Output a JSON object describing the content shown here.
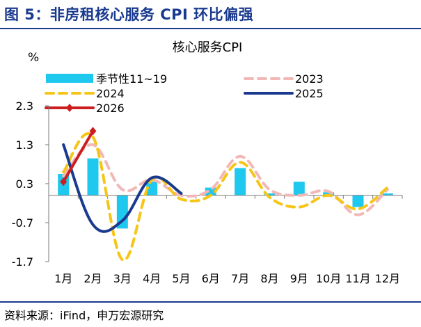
{
  "figure_title": "图 5：非房租核心服务 CPI 环比偏强",
  "source": "资料来源：iFind，申万宏源研究",
  "chart_data": {
    "type": "bar+line",
    "title": "核心服务CPI",
    "ylabel": "%",
    "ylim": [
      -1.7,
      2.3
    ],
    "yticks": [
      2.3,
      1.3,
      0.3,
      -0.7,
      -1.7
    ],
    "ytick_labels": [
      "2.3",
      "1.3",
      "0.3",
      "-0.7",
      "-1.7"
    ],
    "categories": [
      "1月",
      "2月",
      "3月",
      "4月",
      "5月",
      "6月",
      "7月",
      "8月",
      "9月",
      "10月",
      "11月",
      "12月"
    ],
    "bar": {
      "name": "季节性11~19",
      "color": "#1ec8ee",
      "values": [
        0.55,
        0.95,
        -0.85,
        0.35,
        null,
        0.2,
        0.7,
        0.05,
        0.35,
        0.08,
        -0.3,
        0.05
      ]
    },
    "lines": [
      {
        "name": "2023",
        "color": "#f2b8b8",
        "dash": "dashed",
        "values": [
          0.5,
          1.3,
          0.15,
          0.4,
          0.0,
          0.15,
          1.0,
          0.15,
          0.0,
          0.1,
          -0.5,
          0.15
        ]
      },
      {
        "name": "2024",
        "color": "#f5c518",
        "dash": "dashed",
        "values": [
          0.6,
          1.5,
          -1.65,
          0.4,
          -0.1,
          0.0,
          0.85,
          -0.05,
          -0.3,
          0.0,
          -0.35,
          0.2
        ]
      },
      {
        "name": "2025",
        "color": "#1a3a8f",
        "dash": "solid",
        "values": [
          1.3,
          -0.75,
          -0.65,
          0.45,
          0.05
        ]
      },
      {
        "name": "2026",
        "color": "#cc1e1e",
        "dash": "solid",
        "markers": true,
        "values": [
          0.35,
          1.65
        ]
      }
    ],
    "legend": [
      "季节性11~19",
      "2023",
      "2024",
      "2025",
      "2026"
    ],
    "grid": false
  }
}
